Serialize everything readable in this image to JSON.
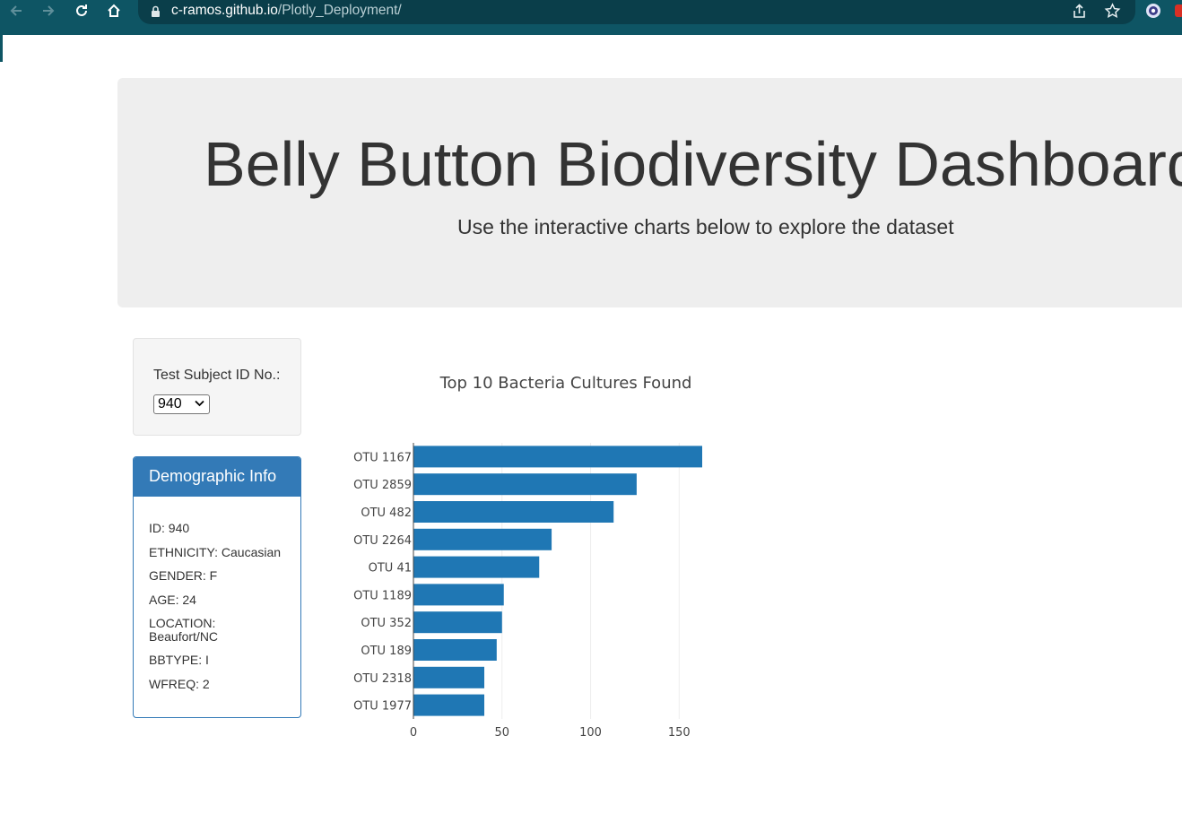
{
  "browser": {
    "url_host": "c-ramos.github.io",
    "url_path": "/Plotly_Deployment/"
  },
  "header": {
    "title": "Belly Button Biodiversity Dashboard",
    "subtitle": "Use the interactive charts below to explore the dataset"
  },
  "selector": {
    "label": "Test Subject ID No.:",
    "selected": "940"
  },
  "demographics": {
    "heading": "Demographic Info",
    "lines": [
      "ID: 940",
      "ETHNICITY: Caucasian",
      "GENDER: F",
      "AGE: 24",
      "LOCATION: Beaufort/NC",
      "BBTYPE: I",
      "WFREQ: 2"
    ]
  },
  "colors": {
    "browser_bar": "#0e5564",
    "jumbotron": "#eeeeee",
    "panel_primary": "#337ab7",
    "bar": "#1f77b4"
  },
  "chart_data": {
    "type": "bar",
    "orientation": "horizontal",
    "title": "Top 10 Bacteria Cultures Found",
    "categories": [
      "OTU 1167",
      "OTU 2859",
      "OTU 482",
      "OTU 2264",
      "OTU 41",
      "OTU 1189",
      "OTU 352",
      "OTU 189",
      "OTU 2318",
      "OTU 1977"
    ],
    "values": [
      163,
      126,
      113,
      78,
      71,
      51,
      50,
      47,
      40,
      40
    ],
    "xlim": [
      0,
      163
    ],
    "xticks": [
      0,
      50,
      100,
      150
    ],
    "grid": true,
    "xlabel": "",
    "ylabel": ""
  }
}
